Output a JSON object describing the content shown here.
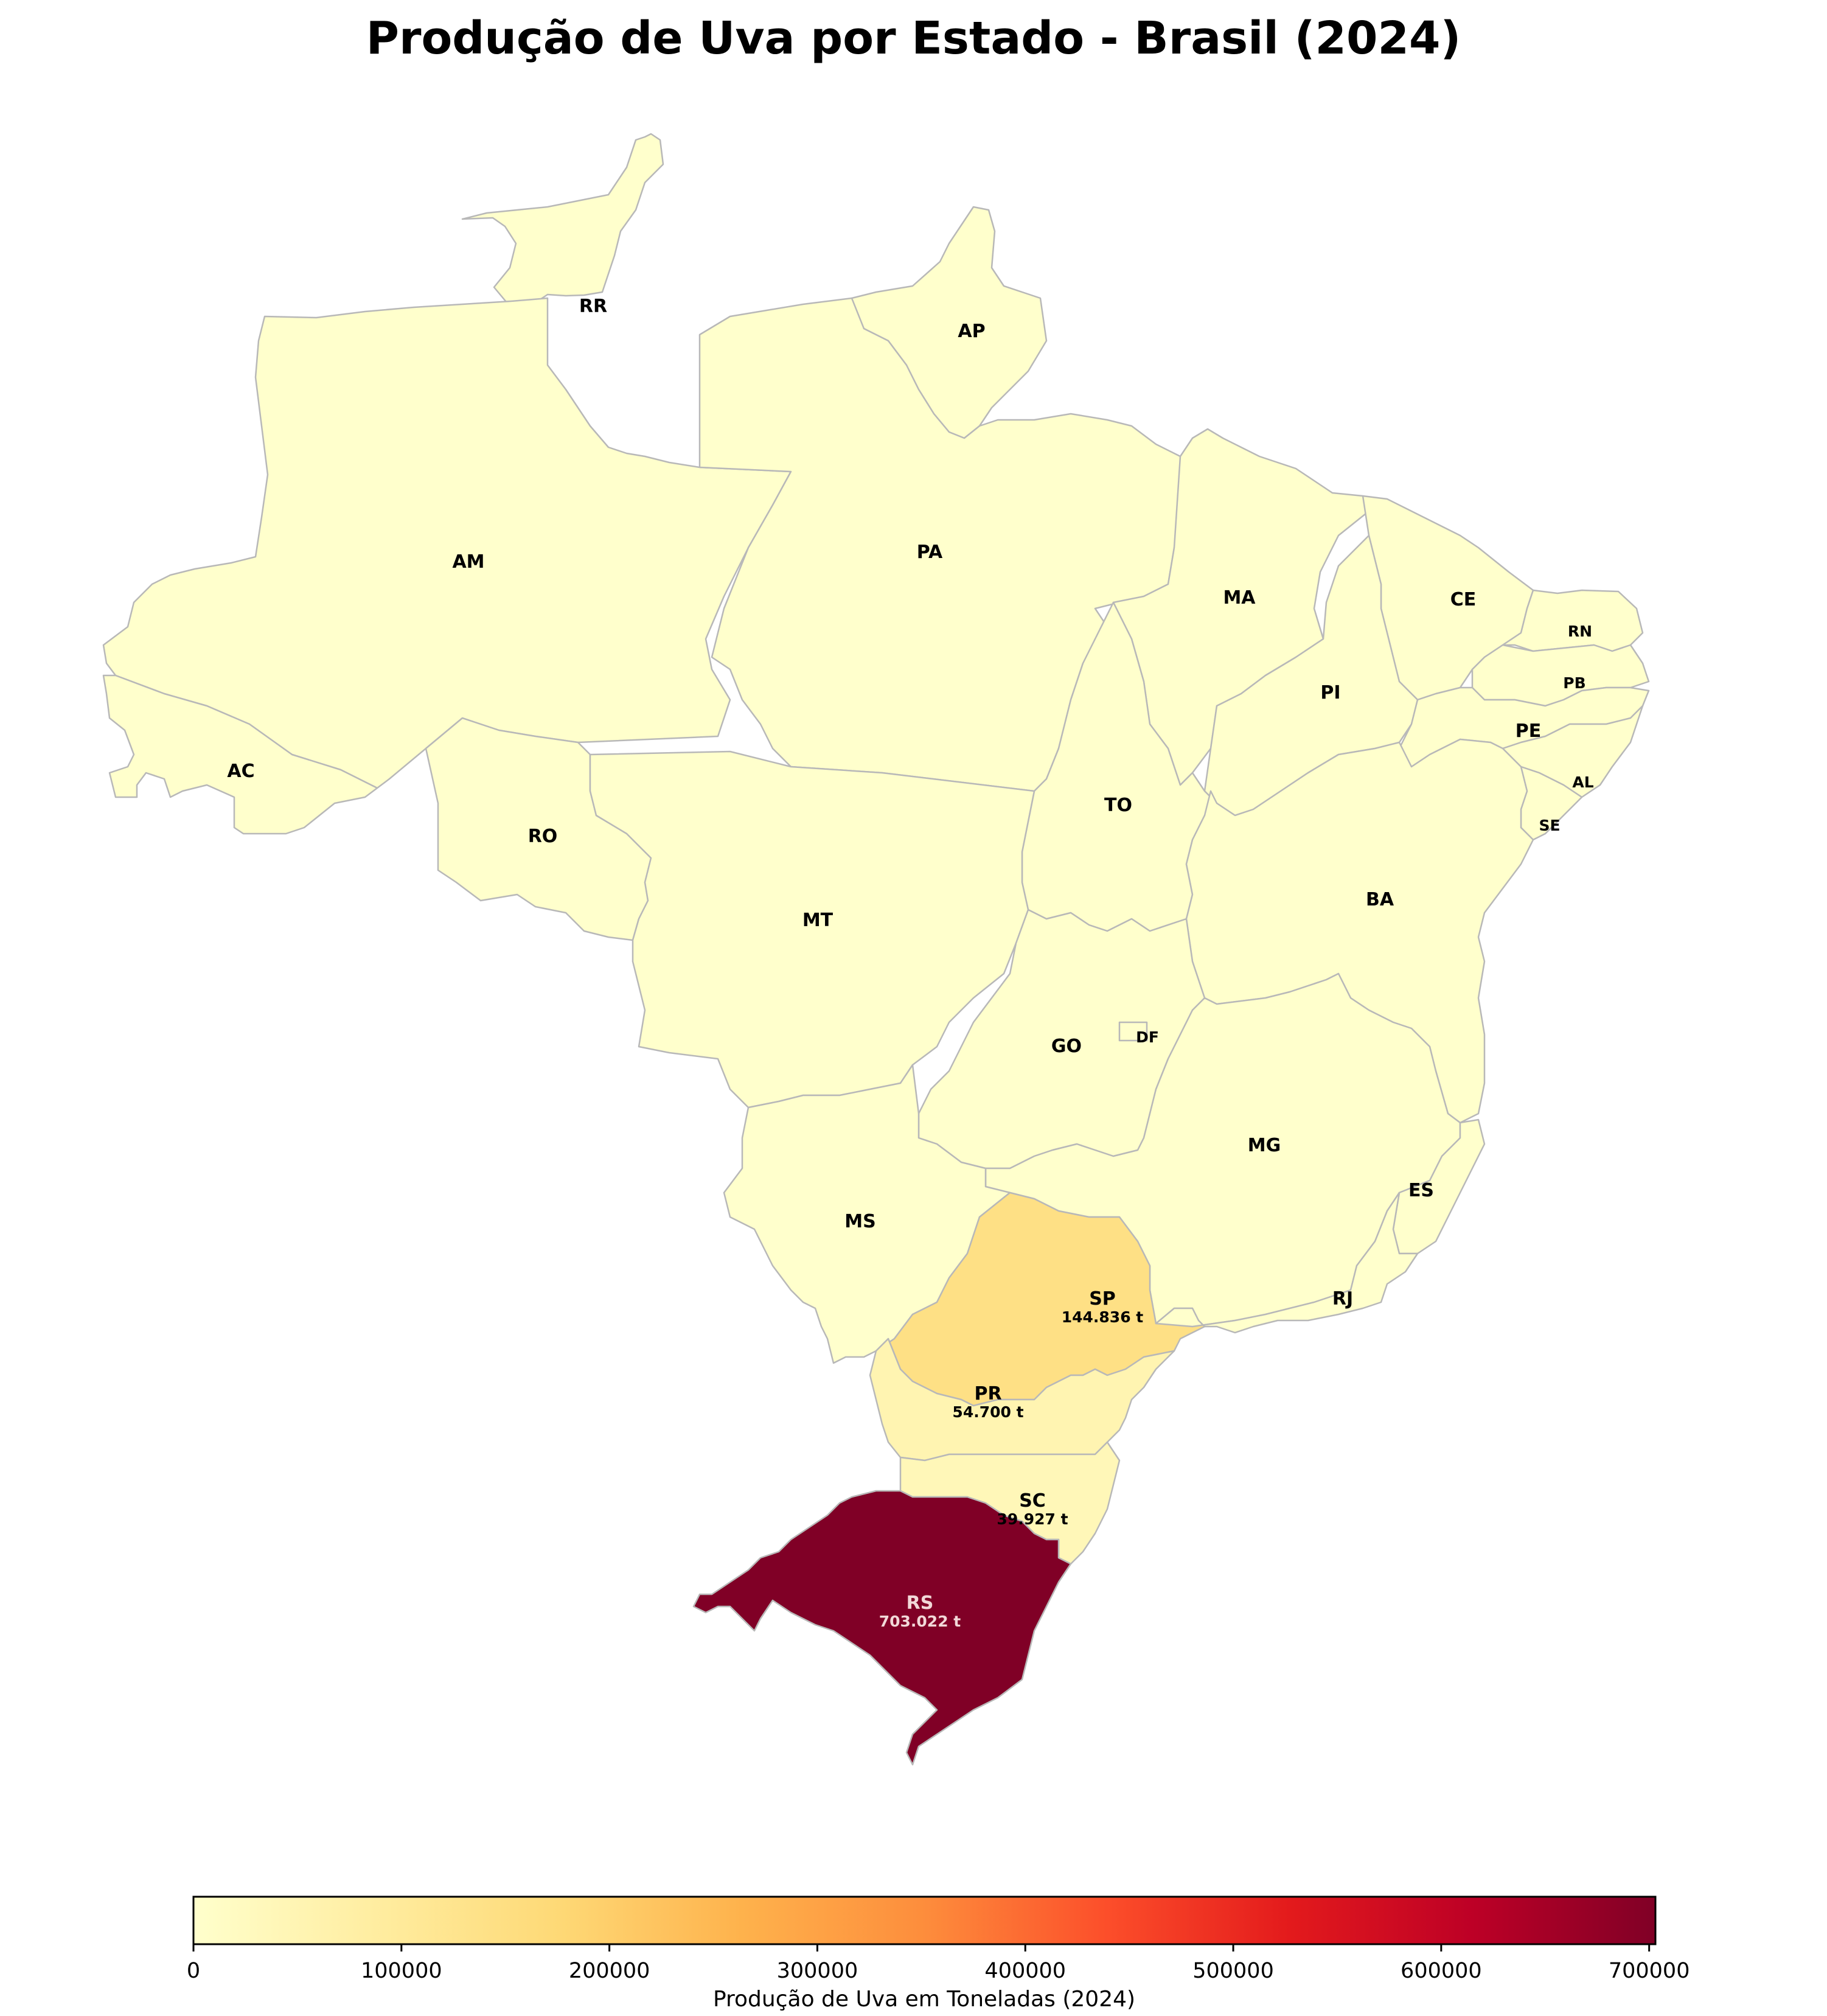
{
  "title": "Produção de Uva por Estado - Brasil (2024)",
  "chart_data": {
    "type": "choropleth",
    "title": "Produção de Uva por Estado - Brasil (2024)",
    "colorbar": {
      "label": "Produção de Uva em Toneladas (2024)",
      "range": [
        0,
        703022
      ],
      "ticks": [
        0,
        100000,
        200000,
        300000,
        400000,
        500000,
        600000,
        700000
      ],
      "tick_labels": [
        "0",
        "100000",
        "200000",
        "300000",
        "400000",
        "500000",
        "600000",
        "700000"
      ],
      "colormap": "YlOrRd"
    },
    "states": [
      {
        "abbr": "RR",
        "value": 0,
        "label": ""
      },
      {
        "abbr": "AP",
        "value": 0,
        "label": ""
      },
      {
        "abbr": "AM",
        "value": 0,
        "label": ""
      },
      {
        "abbr": "PA",
        "value": 0,
        "label": ""
      },
      {
        "abbr": "MA",
        "value": 0,
        "label": ""
      },
      {
        "abbr": "CE",
        "value": 0,
        "label": ""
      },
      {
        "abbr": "RN",
        "value": 0,
        "label": ""
      },
      {
        "abbr": "PB",
        "value": 0,
        "label": ""
      },
      {
        "abbr": "PI",
        "value": 0,
        "label": ""
      },
      {
        "abbr": "PE",
        "value": 0,
        "label": ""
      },
      {
        "abbr": "AC",
        "value": 0,
        "label": ""
      },
      {
        "abbr": "AL",
        "value": 0,
        "label": ""
      },
      {
        "abbr": "SE",
        "value": 0,
        "label": ""
      },
      {
        "abbr": "RO",
        "value": 0,
        "label": ""
      },
      {
        "abbr": "TO",
        "value": 0,
        "label": ""
      },
      {
        "abbr": "BA",
        "value": 0,
        "label": ""
      },
      {
        "abbr": "MT",
        "value": 0,
        "label": ""
      },
      {
        "abbr": "GO",
        "value": 0,
        "label": ""
      },
      {
        "abbr": "DF",
        "value": 0,
        "label": ""
      },
      {
        "abbr": "MG",
        "value": 0,
        "label": ""
      },
      {
        "abbr": "ES",
        "value": 0,
        "label": ""
      },
      {
        "abbr": "MS",
        "value": 0,
        "label": ""
      },
      {
        "abbr": "SP",
        "value": 144836,
        "label": "144.836 t"
      },
      {
        "abbr": "RJ",
        "value": 0,
        "label": ""
      },
      {
        "abbr": "PR",
        "value": 54700,
        "label": "54.700 t"
      },
      {
        "abbr": "SC",
        "value": 39927,
        "label": "39.927 t"
      },
      {
        "abbr": "RS",
        "value": 703022,
        "label": "703.022 t"
      }
    ]
  }
}
